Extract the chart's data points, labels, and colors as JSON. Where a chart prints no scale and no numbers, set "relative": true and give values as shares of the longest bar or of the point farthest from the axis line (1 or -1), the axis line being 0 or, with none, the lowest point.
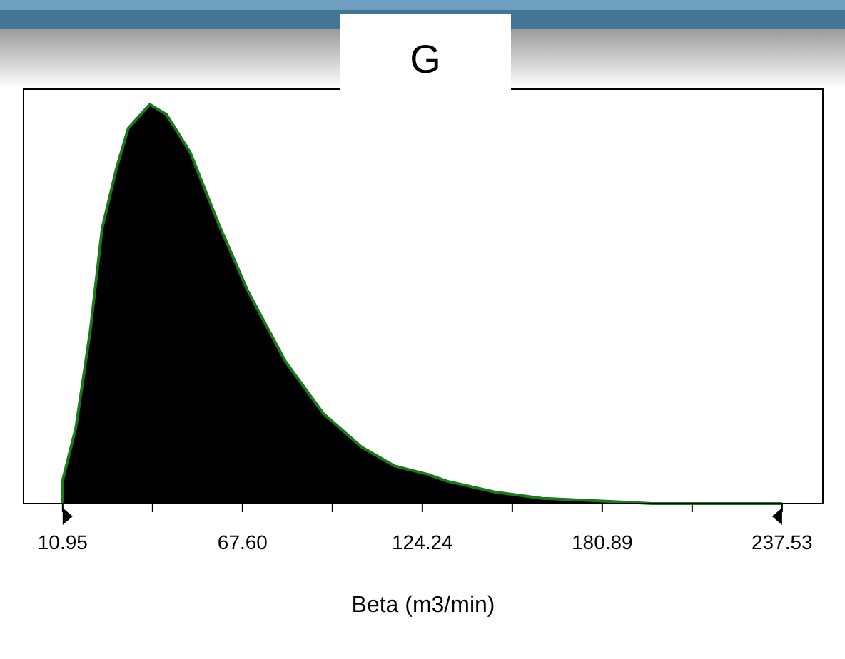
{
  "chart_data": {
    "type": "area",
    "title": "G",
    "xlabel": "Beta (m3/min)",
    "relative": true,
    "tick_labels": "x",
    "grid": false,
    "legend": false,
    "xlim": [
      -1.6,
      250.6
    ],
    "xticks": [
      {
        "value": 10.95,
        "label": "10.95"
      },
      {
        "value": 39.275,
        "label": null
      },
      {
        "value": 67.6,
        "label": "67.60"
      },
      {
        "value": 95.92,
        "label": null
      },
      {
        "value": 124.24,
        "label": "124.24"
      },
      {
        "value": 152.565,
        "label": null
      },
      {
        "value": 180.89,
        "label": "180.89"
      },
      {
        "value": 209.21,
        "label": null
      },
      {
        "value": 237.53,
        "label": "237.53"
      }
    ],
    "series": [
      {
        "color": "#1a7a1a",
        "x": [
          10.95,
          11.0,
          15.1,
          19.6,
          23.4,
          27.9,
          31.6,
          38.4,
          43.6,
          51.1,
          60.1,
          69.1,
          81.1,
          93.1,
          105.0,
          115.5,
          126.0,
          132.0,
          147.0,
          162.0,
          184.5,
          196.5,
          237.53
        ],
        "values": [
          0,
          0.06,
          0.19,
          0.43,
          0.69,
          0.84,
          0.94,
          1.0,
          0.975,
          0.88,
          0.7,
          0.535,
          0.356,
          0.225,
          0.142,
          0.094,
          0.073,
          0.056,
          0.029,
          0.013,
          0.005,
          0,
          0
        ]
      }
    ]
  }
}
